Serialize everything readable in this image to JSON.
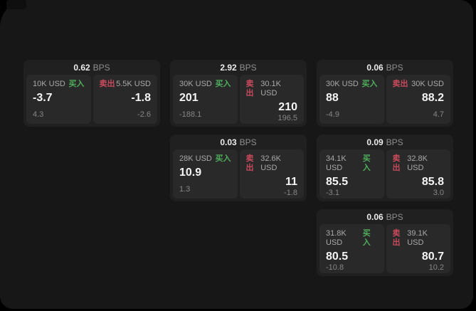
{
  "labels": {
    "bps_suffix": "BPS",
    "buy_label": "买入",
    "sell_label": "卖出"
  },
  "colors": {
    "buy_green": "#4fae5c",
    "sell_red": "#c94a5c",
    "panel_bg": "#292929",
    "card_bg": "#202020",
    "app_bg": "#171717"
  },
  "cards": [
    {
      "col": 1,
      "row": 1,
      "bps": "0.62",
      "buy": {
        "amount": "10K USD",
        "big": "-3.7",
        "small": "4.3"
      },
      "sell": {
        "amount": "5.5K USD",
        "big": "-1.8",
        "small": "-2.6"
      }
    },
    {
      "col": 2,
      "row": 1,
      "bps": "2.92",
      "buy": {
        "amount": "30K USD",
        "big": "201",
        "small": "-188.1"
      },
      "sell": {
        "amount": "30.1K USD",
        "big": "210",
        "small": "196.5"
      }
    },
    {
      "col": 3,
      "row": 1,
      "bps": "0.06",
      "buy": {
        "amount": "30K USD",
        "big": "88",
        "small": "-4.9"
      },
      "sell": {
        "amount": "30K USD",
        "big": "88.2",
        "small": "4.7"
      }
    },
    {
      "col": 2,
      "row": 2,
      "bps": "0.03",
      "buy": {
        "amount": "28K USD",
        "big": "10.9",
        "small": "1.3"
      },
      "sell": {
        "amount": "32.6K USD",
        "big": "11",
        "small": "-1.8"
      }
    },
    {
      "col": 3,
      "row": 2,
      "bps": "0.09",
      "buy": {
        "amount": "34.1K USD",
        "big": "85.5",
        "small": "-3.1"
      },
      "sell": {
        "amount": "32.8K USD",
        "big": "85.8",
        "small": "3.0"
      }
    },
    {
      "col": 3,
      "row": 3,
      "bps": "0.06",
      "buy": {
        "amount": "31.8K USD",
        "big": "80.5",
        "small": "-10.8"
      },
      "sell": {
        "amount": "39.1K USD",
        "big": "80.7",
        "small": "10.2"
      }
    }
  ]
}
